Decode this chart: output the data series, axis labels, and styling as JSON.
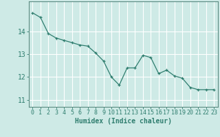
{
  "x": [
    0,
    1,
    2,
    3,
    4,
    5,
    6,
    7,
    8,
    9,
    10,
    11,
    12,
    13,
    14,
    15,
    16,
    17,
    18,
    19,
    20,
    21,
    22,
    23
  ],
  "y": [
    14.8,
    14.6,
    13.9,
    13.7,
    13.6,
    13.5,
    13.4,
    13.35,
    13.05,
    12.7,
    12.0,
    11.65,
    12.4,
    12.4,
    12.95,
    12.85,
    12.15,
    12.3,
    12.05,
    11.95,
    11.55,
    11.45,
    11.45,
    11.45
  ],
  "line_color": "#2e7d6e",
  "marker": "+",
  "bg_color": "#ceeae6",
  "grid_color": "#ffffff",
  "xlabel": "Humidex (Indice chaleur)",
  "yticks": [
    11,
    12,
    13,
    14
  ],
  "xlim": [
    -0.5,
    23.5
  ],
  "ylim": [
    10.7,
    15.3
  ],
  "font_color": "#2e7d6e",
  "axis_color": "#5a8a80",
  "tick_label_fontsize": 6,
  "xlabel_fontsize": 7
}
